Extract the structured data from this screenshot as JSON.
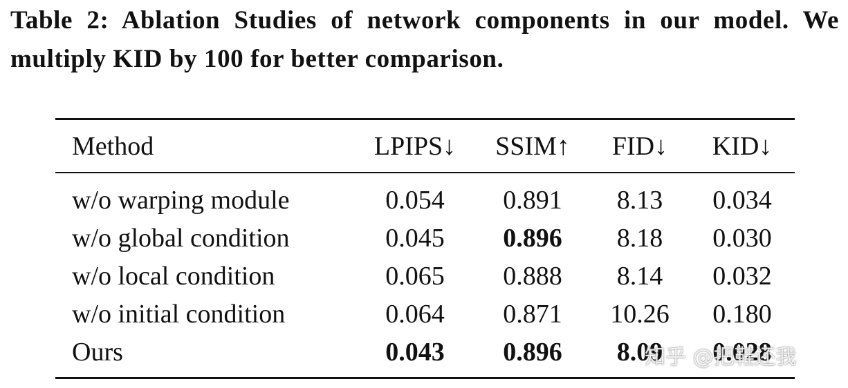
{
  "caption": "Table 2: Ablation Studies of network components in our model. We multiply KID by 100 for better comparison.",
  "table": {
    "header": [
      "Method",
      "LPIPS↓",
      "SSIM↑",
      "FID↓",
      "KID↓"
    ],
    "rows": [
      [
        "w/o warping module",
        "0.054",
        "0.891",
        "8.13",
        "0.034"
      ],
      [
        "w/o global condition",
        "0.045",
        "0.896",
        "8.18",
        "0.030"
      ],
      [
        "w/o local condition",
        "0.065",
        "0.888",
        "8.14",
        "0.032"
      ],
      [
        "w/o initial condition",
        "0.064",
        "0.871",
        "10.26",
        "0.180"
      ],
      [
        "Ours",
        "0.043",
        "0.896",
        "8.09",
        "0.028"
      ]
    ],
    "bold_cells": [
      [
        1,
        2
      ],
      [
        4,
        1
      ],
      [
        4,
        2
      ],
      [
        4,
        3
      ],
      [
        4,
        4
      ]
    ]
  },
  "watermark": "知乎 @把鞋还我"
}
